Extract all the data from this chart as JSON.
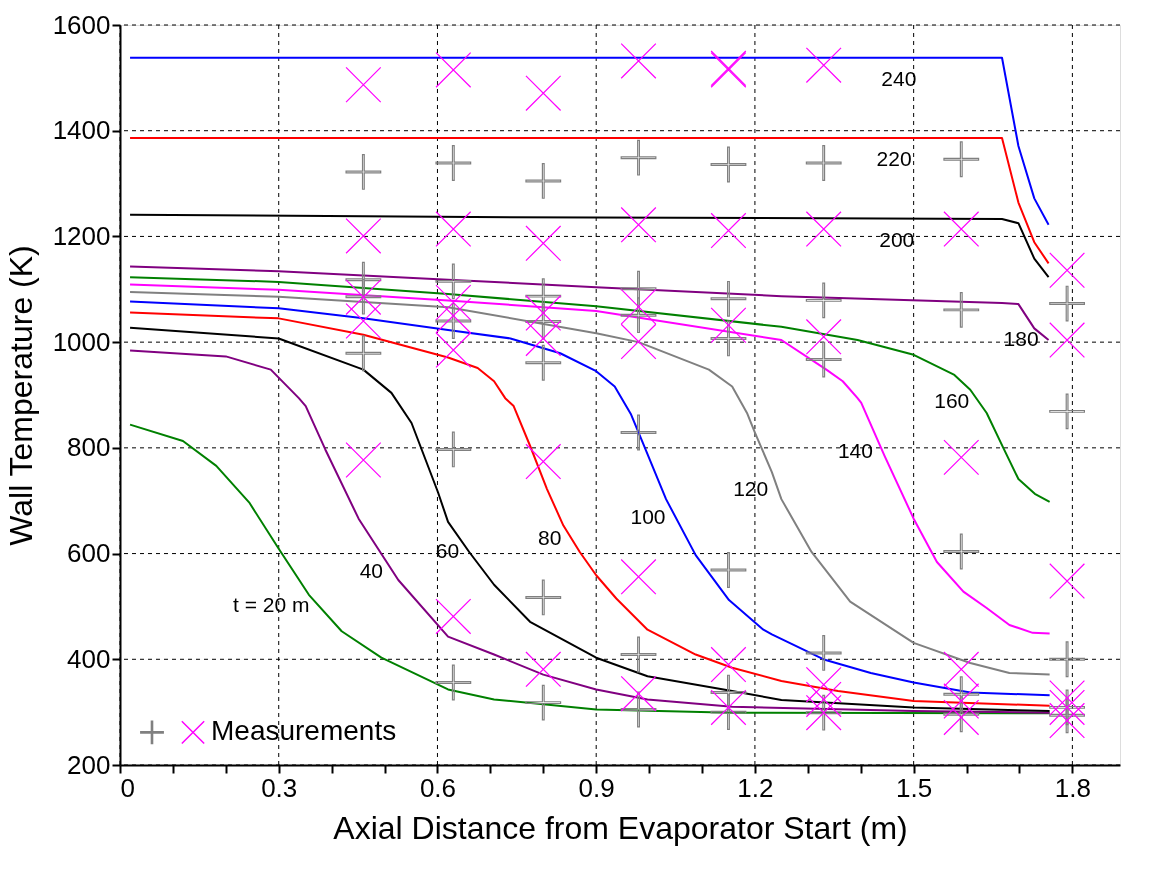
{
  "chart_data": {
    "type": "line",
    "xlabel": "Axial Distance from Evaporator Start (m)",
    "ylabel": "Wall Temperature (K)",
    "xlim": [
      0,
      1.89
    ],
    "ylim": [
      200,
      1600
    ],
    "xticks": [
      0,
      {
        "value": 0.1,
        "label": null
      },
      {
        "value": 0.2,
        "label": null
      },
      0.3,
      {
        "value": 0.4,
        "label": null
      },
      {
        "value": 0.5,
        "label": null
      },
      0.6,
      {
        "value": 0.7,
        "label": null
      },
      {
        "value": 0.8,
        "label": null
      },
      0.9,
      {
        "value": 1.0,
        "label": null
      },
      {
        "value": 1.1,
        "label": null
      },
      1.2,
      {
        "value": 1.3,
        "label": null
      },
      {
        "value": 1.4,
        "label": null
      },
      1.5,
      {
        "value": 1.6,
        "label": null
      },
      {
        "value": 1.7,
        "label": null
      },
      1.8
    ],
    "yticks": [
      200,
      400,
      600,
      800,
      1000,
      1200,
      1400,
      1600
    ],
    "grid": true,
    "legend": "bottom left",
    "line_style": "solid",
    "series": [
      {
        "color": "#008000",
        "x": [
          0.019,
          0.119,
          0.182,
          0.244,
          0.3,
          0.357,
          0.419,
          0.494,
          0.62,
          0.707,
          0.9,
          1.157,
          1.757
        ],
        "values": [
          844,
          813,
          766,
          697,
          609,
          522,
          453,
          403,
          343,
          324,
          305,
          299,
          298
        ]
      },
      {
        "color": "#800080",
        "x": [
          0.019,
          0.2,
          0.285,
          0.338,
          0.351,
          0.388,
          0.451,
          0.526,
          0.62,
          0.707,
          0.8,
          0.9,
          0.997,
          1.157,
          1.5,
          1.757
        ],
        "values": [
          984,
          973,
          948,
          894,
          879,
          797,
          666,
          550,
          443,
          409,
          371,
          343,
          324,
          310,
          302,
          299
        ]
      },
      {
        "color": "#000000",
        "x": [
          0.019,
          0.3,
          0.46,
          0.513,
          0.551,
          0.601,
          0.62,
          0.66,
          0.707,
          0.775,
          0.9,
          0.997,
          1.157,
          1.25,
          1.5,
          1.757
        ],
        "values": [
          1027,
          1007,
          948,
          904,
          847,
          716,
          660,
          603,
          541,
          471,
          403,
          368,
          340,
          323,
          309,
          302
        ]
      },
      {
        "color": "#ff0000",
        "x": [
          0.019,
          0.3,
          0.46,
          0.62,
          0.676,
          0.707,
          0.728,
          0.744,
          0.775,
          0.807,
          0.838,
          0.869,
          0.9,
          0.938,
          0.997,
          1.088,
          1.157,
          1.25,
          1.357,
          1.5,
          1.757
        ],
        "values": [
          1056,
          1045,
          1014,
          971,
          951,
          926,
          894,
          879,
          804,
          722,
          653,
          603,
          559,
          515,
          456,
          409,
          384,
          359,
          340,
          321,
          312
        ]
      },
      {
        "color": "#0000ff",
        "x": [
          0.019,
          0.3,
          0.46,
          0.62,
          0.738,
          0.832,
          0.9,
          0.935,
          0.966,
          0.988,
          1.032,
          1.088,
          1.151,
          1.216,
          1.232,
          1.332,
          1.419,
          1.5,
          1.607,
          1.757
        ],
        "values": [
          1077,
          1064,
          1045,
          1023,
          1007,
          979,
          945,
          916,
          863,
          810,
          703,
          597,
          512,
          456,
          447,
          399,
          374,
          356,
          337,
          332
        ]
      },
      {
        "color": "#808080",
        "x": [
          0.019,
          0.3,
          0.62,
          0.9,
          0.98,
          1.113,
          1.157,
          1.185,
          1.2,
          1.232,
          1.25,
          1.307,
          1.38,
          1.5,
          1.607,
          1.681,
          1.757
        ],
        "values": [
          1095,
          1086,
          1066,
          1017,
          1000,
          948,
          916,
          866,
          829,
          754,
          703,
          603,
          509,
          431,
          393,
          374,
          371
        ]
      },
      {
        "color": "#ff00ff",
        "x": [
          0.019,
          0.3,
          0.62,
          0.9,
          1.25,
          1.335,
          1.366,
          1.394,
          1.401,
          1.445,
          1.5,
          1.544,
          1.594,
          1.638,
          1.681,
          1.725,
          1.757
        ],
        "values": [
          1109,
          1099,
          1079,
          1059,
          1004,
          948,
          926,
          894,
          885,
          785,
          666,
          584,
          528,
          497,
          465,
          450,
          449
        ]
      },
      {
        "color": "#008000",
        "x": [
          0.019,
          0.3,
          0.62,
          0.9,
          1.25,
          1.394,
          1.5,
          1.577,
          1.607,
          1.638,
          1.669,
          1.698,
          1.729,
          1.757
        ],
        "values": [
          1123,
          1114,
          1091,
          1068,
          1029,
          1004,
          976,
          938,
          910,
          866,
          801,
          741,
          713,
          698
        ]
      },
      {
        "color": "#800080",
        "x": [
          0.019,
          0.3,
          0.62,
          0.9,
          1.25,
          1.667,
          1.698,
          1.728,
          1.755
        ],
        "values": [
          1143,
          1134,
          1118,
          1104,
          1087,
          1074,
          1072,
          1026,
          1004
        ]
      },
      {
        "color": "#000000",
        "x": [
          0.019,
          0.6,
          1.667,
          1.698,
          1.728,
          1.755
        ],
        "values": [
          1241,
          1237,
          1233,
          1225,
          1158,
          1123
        ]
      },
      {
        "color": "#ff0000",
        "x": [
          0.019,
          1.667,
          1.698,
          1.728,
          1.755
        ],
        "values": [
          1386,
          1386,
          1264,
          1189,
          1149
        ]
      },
      {
        "color": "#0000ff",
        "x": [
          0.019,
          1.667,
          1.698,
          1.728,
          1.755
        ],
        "values": [
          1538,
          1538,
          1371,
          1272,
          1222
        ]
      },
      {
        "type": "scatter",
        "color": "#808080",
        "x": [
          0.46,
          0.46,
          0.46,
          0.46,
          0.63,
          0.63,
          0.63,
          0.63,
          0.63,
          0.8,
          0.8,
          0.8,
          0.8,
          0.8,
          0.8,
          0.98,
          0.98,
          0.98,
          0.98,
          0.98,
          0.98,
          1.15,
          1.15,
          1.15,
          1.15,
          1.15,
          1.15,
          1.33,
          1.33,
          1.33,
          1.33,
          1.33,
          1.59,
          1.59,
          1.59,
          1.59,
          1.59,
          1.79,
          1.79,
          1.79,
          1.79,
          1.79
        ],
        "values": [
          1322,
          1118,
          1086,
          979,
          1339,
          1115,
          1040,
          797,
          356,
          1305,
          1087,
          1039,
          961,
          517,
          318,
          1349,
          1101,
          1051,
          829,
          409,
          305,
          1336,
          1082,
          1007,
          569,
          337,
          300,
          1339,
          1079,
          967,
          412,
          299,
          1346,
          1061,
          604,
          334,
          296,
          1073,
          869,
          400,
          309,
          294
        ]
      },
      {
        "type": "scatter",
        "name": "Measurements",
        "color": "#ff00ff",
        "marker": "cross",
        "x": [
          0.46,
          0.46,
          0.46,
          0.46,
          0.46,
          0.63,
          0.63,
          0.63,
          0.63,
          0.63,
          0.63,
          0.8,
          0.8,
          0.8,
          0.8,
          0.8,
          0.8,
          0.98,
          0.98,
          0.98,
          0.98,
          0.98,
          0.98,
          1.15,
          1.15,
          1.15,
          1.15,
          1.15,
          1.15,
          1.33,
          1.33,
          1.33,
          1.33,
          1.33,
          1.33,
          1.59,
          1.59,
          1.59,
          1.59,
          1.59,
          1.79,
          1.79,
          1.79,
          1.79,
          1.79,
          1.79
        ],
        "values": [
          1487,
          1201,
          1085,
          1040,
          777,
          1515,
          1214,
          1075,
          1050,
          985,
          481,
          1471,
          1187,
          1055,
          1007,
          774,
          381,
          1532,
          1222,
          1067,
          1001,
          556,
          335,
          1515,
          1211,
          1032,
          390,
          309,
          1518,
          1214,
          1010,
          352,
          324,
          299,
          1524,
          1214,
          782,
          381,
          321,
          290,
          1136,
          1004,
          548,
          327,
          309,
          284
        ]
      }
    ],
    "annotations": [
      {
        "text": "t = 20 m",
        "x": 0.377,
        "y": 500
      },
      {
        "text": "40",
        "x": 0.516,
        "y": 566
      },
      {
        "text": "60",
        "x": 0.66,
        "y": 603
      },
      {
        "text": "80",
        "x": 0.853,
        "y": 628
      },
      {
        "text": "100",
        "x": 1.05,
        "y": 668
      },
      {
        "text": "120",
        "x": 1.244,
        "y": 720
      },
      {
        "text": "140",
        "x": 1.442,
        "y": 792
      },
      {
        "text": "160",
        "x": 1.624,
        "y": 886
      },
      {
        "text": "180",
        "x": 1.755,
        "y": 1004
      },
      {
        "text": "200",
        "x": 1.468,
        "y": 1233
      },
      {
        "text": "220",
        "x": 1.463,
        "y": 1386
      },
      {
        "text": "240",
        "x": 1.472,
        "y": 1538
      }
    ]
  }
}
